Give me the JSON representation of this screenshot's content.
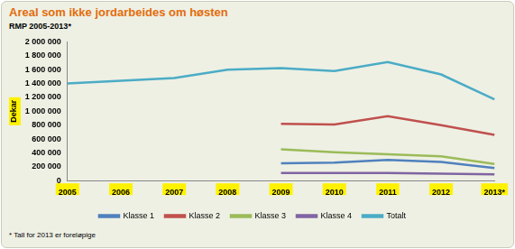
{
  "chart_data": {
    "type": "line",
    "title": "Areal som ikke jordarbeides om høsten",
    "subtitle": "RMP 2005-2013*",
    "ylabel": "Dekar",
    "categories": [
      "2005",
      "2006",
      "2007",
      "2008",
      "2009",
      "2010",
      "2011",
      "2012",
      "2013*"
    ],
    "series": [
      {
        "name": "Klasse 1",
        "color": "#4f81bd",
        "values": [
          null,
          null,
          null,
          null,
          250000,
          260000,
          300000,
          270000,
          180000
        ]
      },
      {
        "name": "Klasse 2",
        "color": "#c0504d",
        "values": [
          null,
          null,
          null,
          null,
          820000,
          810000,
          930000,
          800000,
          660000
        ]
      },
      {
        "name": "Klasse 3",
        "color": "#9bbb59",
        "values": [
          null,
          null,
          null,
          null,
          450000,
          410000,
          380000,
          350000,
          240000
        ]
      },
      {
        "name": "Klasse 4",
        "color": "#8064a2",
        "values": [
          null,
          null,
          null,
          null,
          110000,
          110000,
          110000,
          100000,
          90000
        ]
      },
      {
        "name": "Totalt",
        "color": "#4bacc6",
        "values": [
          1400000,
          1440000,
          1480000,
          1600000,
          1620000,
          1580000,
          1710000,
          1530000,
          1170000
        ]
      }
    ],
    "ylim": [
      0,
      2000000
    ],
    "yticks": [
      0,
      {
        "value": 200000,
        "label": "200 000"
      },
      {
        "value": 400000,
        "label": "400 000"
      },
      {
        "value": 600000,
        "label": "600 000"
      },
      {
        "value": 800000,
        "label": "800 000"
      },
      {
        "value": 1000000,
        "label": "1 000 000"
      },
      {
        "value": 1200000,
        "label": "1 200 000"
      },
      {
        "value": 1400000,
        "label": "1 400 000"
      },
      {
        "value": 1600000,
        "label": "1 600 000"
      },
      {
        "value": 1800000,
        "label": "1 800 000"
      },
      {
        "value": 2000000,
        "label": "2 000 000"
      }
    ],
    "grid": false,
    "legend": "bottom",
    "annotations": [
      "* Tall for 2013 er foreløpige"
    ]
  }
}
